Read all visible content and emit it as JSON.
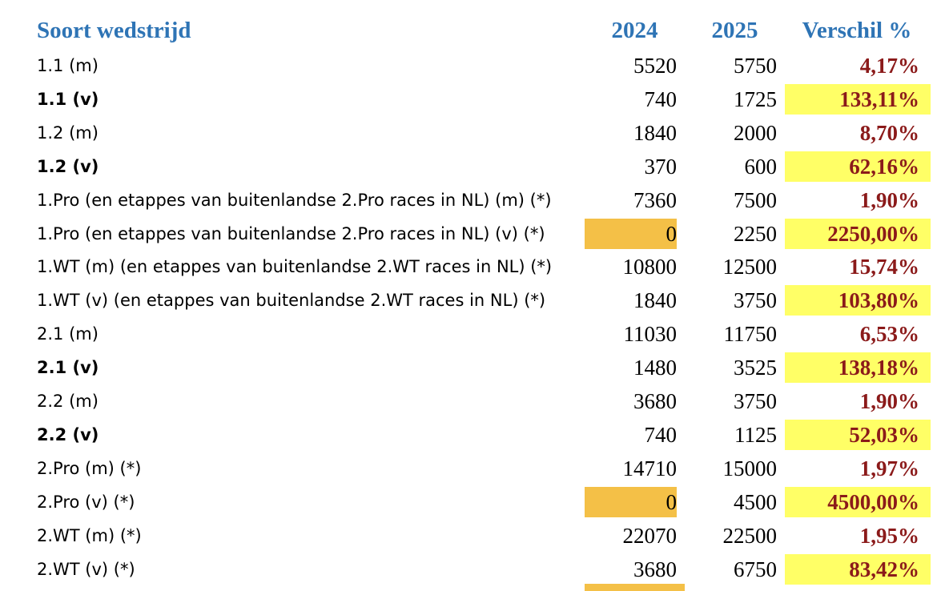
{
  "header": {
    "label": "Soort wedstrijd",
    "col_2024": "2024",
    "col_2025": "2025",
    "col_diff": "Verschil %",
    "color": "#2e74b5"
  },
  "diff_color": "#8b1a1a",
  "rows": [
    {
      "label": "1.1 (m)",
      "v2024": 5520,
      "v2025": 5750,
      "diff": "4,17%",
      "bold": false
    },
    {
      "label": "1.1 (v)",
      "v2024": 740,
      "v2025": 1725,
      "diff": "133,11%",
      "bold": true,
      "diff_fill": "#ffff66"
    },
    {
      "label": "1.2 (m)",
      "v2024": 1840,
      "v2025": 2000,
      "diff": "8,70%",
      "bold": false
    },
    {
      "label": "1.2 (v)",
      "v2024": 370,
      "v2025": 600,
      "diff": "62,16%",
      "bold": true,
      "diff_fill": "#ffff66"
    },
    {
      "label": "1.Pro (en etappes van buitenlandse 2.Pro races in NL) (m) (*)",
      "v2024": 7360,
      "v2025": 7500,
      "diff": "1,90%",
      "bold": false
    },
    {
      "label": "1.Pro (en etappes van buitenlandse 2.Pro races in NL) (v) (*)",
      "v2024": 0,
      "v2025": 2250,
      "diff": "2250,00%",
      "bold": false,
      "fill_2024": "#f4c047",
      "diff_fill": "#ffff66"
    },
    {
      "label": "1.WT (m) (en etappes van buitenlandse 2.WT races in NL) (*)",
      "v2024": 10800,
      "v2025": 12500,
      "diff": "15,74%",
      "bold": false
    },
    {
      "label": "1.WT (v) (en etappes van buitenlandse 2.WT races in NL) (*)",
      "v2024": 1840,
      "v2025": 3750,
      "diff": "103,80%",
      "bold": false,
      "diff_fill": "#ffff66"
    },
    {
      "label": "2.1 (m)",
      "v2024": 11030,
      "v2025": 11750,
      "diff": "6,53%",
      "bold": false
    },
    {
      "label": "2.1 (v)",
      "v2024": 1480,
      "v2025": 3525,
      "diff": "138,18%",
      "bold": true,
      "diff_fill": "#ffff66"
    },
    {
      "label": "2.2 (m)",
      "v2024": 3680,
      "v2025": 3750,
      "diff": "1,90%",
      "bold": false
    },
    {
      "label": "2.2 (v)",
      "v2024": 740,
      "v2025": 1125,
      "diff": "52,03%",
      "bold": true,
      "diff_fill": "#ffff66"
    },
    {
      "label": "2.Pro (m) (*)",
      "v2024": 14710,
      "v2025": 15000,
      "diff": "1,97%",
      "bold": false
    },
    {
      "label": "2.Pro (v) (*)",
      "v2024": 0,
      "v2025": 4500,
      "diff": "4500,00%",
      "bold": false,
      "fill_2024": "#f4c047",
      "diff_fill": "#ffff66"
    },
    {
      "label": "2.WT (m) (*)",
      "v2024": 22070,
      "v2025": 22500,
      "diff": "1,95%",
      "bold": false
    },
    {
      "label": "2.WT (v) (*)",
      "v2024": 3680,
      "v2025": 6750,
      "diff": "83,42%",
      "bold": false,
      "diff_fill": "#ffff66"
    }
  ]
}
